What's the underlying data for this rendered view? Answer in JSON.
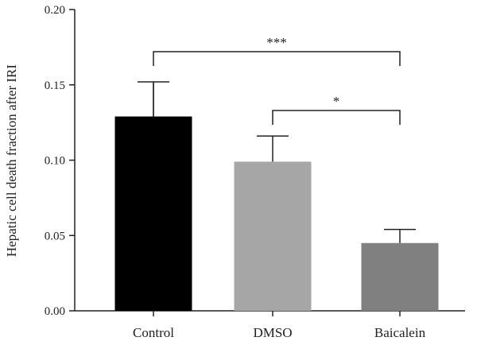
{
  "chart_data": {
    "type": "bar",
    "ylabel": "Hepatic cell death fraction after IRI",
    "xlabel": "",
    "ylim": [
      0,
      0.2
    ],
    "yticks": [
      "0.00",
      "0.05",
      "0.10",
      "0.15",
      "0.20"
    ],
    "categories": [
      "Control",
      "DMSO",
      "Baicalein"
    ],
    "values": [
      0.129,
      0.099,
      0.045
    ],
    "errors": [
      0.023,
      0.017,
      0.009
    ],
    "colors": [
      "#000000",
      "#a6a6a6",
      "#808080"
    ],
    "grid": false,
    "legend": "none",
    "significance": [
      {
        "from": "Control",
        "to": "Baicalein",
        "label": "***",
        "y": 0.172
      },
      {
        "from": "DMSO",
        "to": "Baicalein",
        "label": "*",
        "y": 0.133
      }
    ]
  }
}
